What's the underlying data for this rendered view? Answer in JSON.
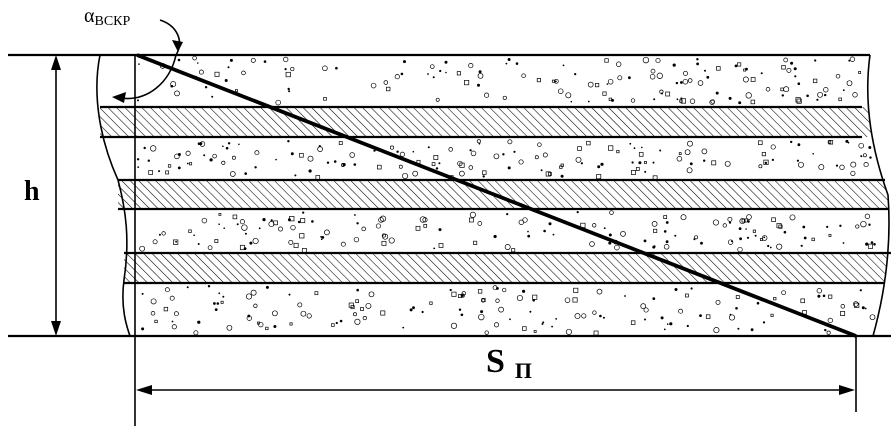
{
  "diagram": {
    "angle_label": {
      "symbol": "α",
      "subscript": "ВСКР"
    },
    "height_label": "h",
    "length_label": {
      "main": "S",
      "subscript": "П"
    },
    "layers": [
      {
        "kind": "stippled"
      },
      {
        "kind": "hatched"
      },
      {
        "kind": "stippled"
      },
      {
        "kind": "hatched"
      },
      {
        "kind": "stippled"
      },
      {
        "kind": "hatched"
      },
      {
        "kind": "stippled"
      }
    ]
  }
}
